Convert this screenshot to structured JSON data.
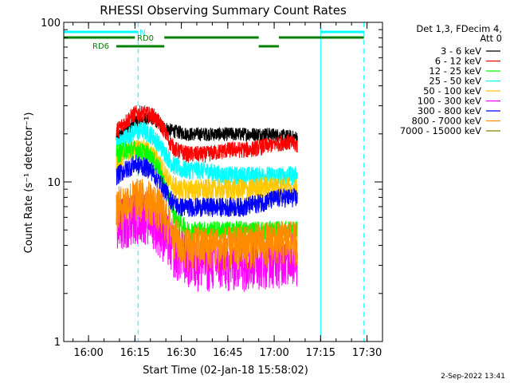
{
  "chart_data": {
    "type": "line",
    "title": "RHESSI Observing Summary Count Rates",
    "xlabel": "Start Time (02-Jan-18 15:58:02)",
    "ylabel": "Count Rate (s⁻¹ detector⁻¹)",
    "yscale": "log",
    "ylim": [
      1,
      100
    ],
    "xlim_minutes_after_start": [
      -6,
      97
    ],
    "x_tick_labels": [
      "16:00",
      "16:15",
      "16:30",
      "16:45",
      "17:00",
      "17:15",
      "17:30"
    ],
    "x_tick_minutes": [
      2,
      17,
      32,
      47,
      62,
      77,
      92
    ],
    "y_tick_labels": [
      "1",
      "10",
      "100"
    ],
    "y_tick_values": [
      1,
      10,
      100
    ],
    "legend_title_line1": "Det 1,3, FDecim 4,",
    "legend_title_line2": "Att 0",
    "legend_position": "right",
    "series": [
      {
        "name": "3 - 6 keV",
        "color": "#000000",
        "x_start_min": 11,
        "x_end_min": 69.5,
        "profile": [
          [
            11,
            19
          ],
          [
            14,
            21
          ],
          [
            17,
            24
          ],
          [
            20,
            25
          ],
          [
            23,
            25
          ],
          [
            26,
            22
          ],
          [
            29,
            21
          ],
          [
            34,
            20
          ],
          [
            40,
            20
          ],
          [
            50,
            20
          ],
          [
            60,
            20
          ],
          [
            69.5,
            19
          ]
        ]
      },
      {
        "name": "6 - 12 keV",
        "color": "#ff0000",
        "x_start_min": 11,
        "x_end_min": 69.5,
        "profile": [
          [
            11,
            21
          ],
          [
            14,
            24
          ],
          [
            17,
            27
          ],
          [
            20,
            27
          ],
          [
            23,
            26
          ],
          [
            26,
            22
          ],
          [
            28,
            18
          ],
          [
            30,
            16
          ],
          [
            34,
            15
          ],
          [
            40,
            15
          ],
          [
            48,
            16
          ],
          [
            54,
            16
          ],
          [
            60,
            17
          ],
          [
            66,
            18
          ],
          [
            69.5,
            17
          ]
        ]
      },
      {
        "name": "12 - 25 keV",
        "color": "#00ff00",
        "x_start_min": 11,
        "x_end_min": 69.5,
        "profile": [
          [
            11,
            15
          ],
          [
            14,
            16
          ],
          [
            17,
            16
          ],
          [
            21,
            15
          ],
          [
            24,
            13
          ],
          [
            27,
            9
          ],
          [
            30,
            6
          ],
          [
            34,
            5
          ],
          [
            40,
            5
          ],
          [
            48,
            5
          ],
          [
            55,
            5
          ],
          [
            60,
            5
          ],
          [
            66,
            5
          ],
          [
            69.5,
            5
          ]
        ]
      },
      {
        "name": "25 - 50 keV",
        "color": "#00ffff",
        "x_start_min": 11,
        "x_end_min": 69.5,
        "profile": [
          [
            11,
            17
          ],
          [
            14,
            19
          ],
          [
            17,
            21
          ],
          [
            20,
            21
          ],
          [
            22,
            20
          ],
          [
            24,
            18
          ],
          [
            26,
            16
          ],
          [
            29,
            13
          ],
          [
            32,
            12
          ],
          [
            38,
            12
          ],
          [
            46,
            11
          ],
          [
            52,
            11
          ],
          [
            60,
            11
          ],
          [
            66,
            11
          ],
          [
            69.5,
            11
          ]
        ]
      },
      {
        "name": "50 - 100 keV",
        "color": "#ffc800",
        "x_start_min": 11,
        "x_end_min": 69.5,
        "profile": [
          [
            11,
            13
          ],
          [
            14,
            15
          ],
          [
            17,
            16
          ],
          [
            20,
            16
          ],
          [
            22,
            15
          ],
          [
            25,
            13
          ],
          [
            28,
            10
          ],
          [
            31,
            9
          ],
          [
            38,
            9
          ],
          [
            46,
            9
          ],
          [
            54,
            9
          ],
          [
            60,
            9.5
          ],
          [
            66,
            9.5
          ],
          [
            69.5,
            9
          ]
        ]
      },
      {
        "name": "100 - 300 keV",
        "color": "#ff00ff",
        "x_start_min": 11,
        "x_end_min": 69.5,
        "profile": [
          [
            11,
            5.5
          ],
          [
            14,
            6
          ],
          [
            17,
            6.5
          ],
          [
            20,
            6.5
          ],
          [
            23,
            6
          ],
          [
            26,
            5
          ],
          [
            30,
            3.8
          ],
          [
            36,
            3.3
          ],
          [
            44,
            3.2
          ],
          [
            52,
            3.3
          ],
          [
            60,
            3.4
          ],
          [
            66,
            3.5
          ],
          [
            69.5,
            3.5
          ]
        ]
      },
      {
        "name": "300 - 800 keV",
        "color": "#0000ff",
        "x_start_min": 11,
        "x_end_min": 69.5,
        "profile": [
          [
            11,
            11
          ],
          [
            14,
            12
          ],
          [
            17,
            13
          ],
          [
            20,
            12.5
          ],
          [
            22,
            12
          ],
          [
            25,
            10
          ],
          [
            28,
            8
          ],
          [
            31,
            7
          ],
          [
            36,
            7
          ],
          [
            44,
            7
          ],
          [
            52,
            7
          ],
          [
            58,
            7.5
          ],
          [
            64,
            8
          ],
          [
            69.5,
            8
          ]
        ]
      },
      {
        "name": "800 - 7000 keV",
        "color": "#ff8c00",
        "x_start_min": 11,
        "x_end_min": 69.5,
        "profile": [
          [
            11,
            7
          ],
          [
            14,
            7.5
          ],
          [
            17,
            8
          ],
          [
            20,
            8
          ],
          [
            23,
            7.5
          ],
          [
            26,
            6.5
          ],
          [
            29,
            5
          ],
          [
            32,
            4
          ],
          [
            40,
            4
          ],
          [
            48,
            4
          ],
          [
            56,
            4.2
          ],
          [
            62,
            4.3
          ],
          [
            69.5,
            4.3
          ]
        ]
      },
      {
        "name": "7000 - 15000 keV",
        "color": "#808000",
        "x_start_min": 11,
        "x_end_min": 69.5,
        "profile": [
          [
            11,
            5
          ],
          [
            69.5,
            5
          ]
        ]
      }
    ],
    "annotations": [
      {
        "label": "N",
        "color": "#00ffff"
      },
      {
        "label": "RD0",
        "color": "#008000"
      },
      {
        "label": "RD6",
        "color": "#008000"
      }
    ],
    "night_segments_minutes": [
      [
        -6,
        18
      ],
      [
        77,
        91
      ]
    ],
    "rd0_segments_minutes": [
      [
        -6,
        17
      ],
      [
        26.5,
        57
      ],
      [
        63.5,
        91
      ]
    ],
    "rd6_segments_minutes": [
      [
        11,
        26.5
      ],
      [
        57,
        63.5
      ]
    ],
    "saa_solid_lines_minutes": [
      -6,
      77
    ],
    "saa_dashed_lines_minutes": [
      18,
      91
    ],
    "footer_date": "2-Sep-2022 13:41"
  }
}
